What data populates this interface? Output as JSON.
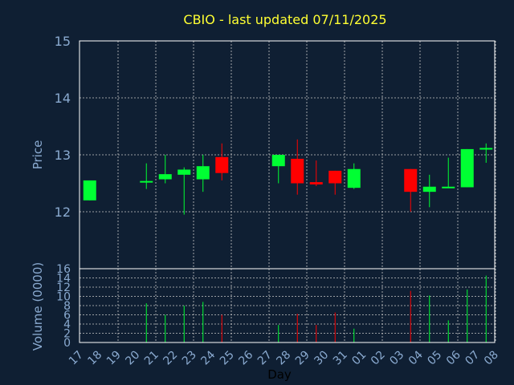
{
  "chart_data": {
    "type": "candlestick",
    "title": "CBIO - last updated 07/11/2025",
    "xlabel": "Day",
    "price_panel": {
      "ylabel": "Price",
      "ylim": [
        11,
        15
      ],
      "yticks": [
        "12",
        "13",
        "14",
        "15"
      ],
      "grid": true
    },
    "volume_panel": {
      "ylabel": "Volume (0000)",
      "ylim": [
        0,
        16
      ],
      "yticks": [
        "0",
        "2",
        "4",
        "6",
        "8",
        "10",
        "12",
        "14",
        "16"
      ],
      "grid": true
    },
    "x_tick_labels": [
      "17",
      "18",
      "19",
      "20",
      "21",
      "22",
      "23",
      "24",
      "25",
      "26",
      "27",
      "28",
      "29",
      "30",
      "31",
      "01",
      "02",
      "03",
      "04",
      "05",
      "06",
      "07",
      "08"
    ],
    "candles": [
      {
        "day": "17",
        "open": 12.2,
        "high": 12.55,
        "low": 12.2,
        "close": 12.55,
        "volume": null
      },
      {
        "day": "20",
        "open": 12.52,
        "high": 12.85,
        "low": 12.4,
        "close": 12.54,
        "volume": 8.5
      },
      {
        "day": "21",
        "open": 12.57,
        "high": 13.0,
        "low": 12.5,
        "close": 12.66,
        "volume": 6.0
      },
      {
        "day": "22",
        "open": 12.65,
        "high": 12.78,
        "low": 11.95,
        "close": 12.74,
        "volume": 8.0
      },
      {
        "day": "23",
        "open": 12.57,
        "high": 13.0,
        "low": 12.35,
        "close": 12.8,
        "volume": 8.8
      },
      {
        "day": "24",
        "open": 12.96,
        "high": 13.2,
        "low": 12.55,
        "close": 12.68,
        "volume": 6.0
      },
      {
        "day": "27",
        "open": 12.8,
        "high": 13.0,
        "low": 12.5,
        "close": 13.0,
        "volume": 3.8
      },
      {
        "day": "28",
        "open": 12.93,
        "high": 13.27,
        "low": 12.3,
        "close": 12.5,
        "volume": 6.2
      },
      {
        "day": "29",
        "open": 12.52,
        "high": 12.9,
        "low": 12.45,
        "close": 12.48,
        "volume": 3.8
      },
      {
        "day": "30",
        "open": 12.72,
        "high": 12.72,
        "low": 12.3,
        "close": 12.5,
        "volume": 6.5
      },
      {
        "day": "31",
        "open": 12.42,
        "high": 12.85,
        "low": 12.4,
        "close": 12.75,
        "volume": 3.0
      },
      {
        "day": "03",
        "open": 12.75,
        "high": 12.75,
        "low": 12.0,
        "close": 12.35,
        "volume": 11.2
      },
      {
        "day": "04",
        "open": 12.35,
        "high": 12.65,
        "low": 12.08,
        "close": 12.44,
        "volume": 10.2
      },
      {
        "day": "05",
        "open": 12.42,
        "high": 12.95,
        "low": 12.42,
        "close": 12.44,
        "volume": 4.8
      },
      {
        "day": "06",
        "open": 12.43,
        "high": 13.1,
        "low": 12.43,
        "close": 13.1,
        "volume": 11.5
      },
      {
        "day": "07",
        "open": 13.1,
        "high": 13.2,
        "low": 12.86,
        "close": 13.12,
        "volume": 14.5
      }
    ],
    "colors": {
      "background": "#0f1f33",
      "up": "#00ff33",
      "down": "#ff0000",
      "grid": "#c8c8c8",
      "axis": "#8aaad0",
      "title": "#ffff33"
    }
  }
}
